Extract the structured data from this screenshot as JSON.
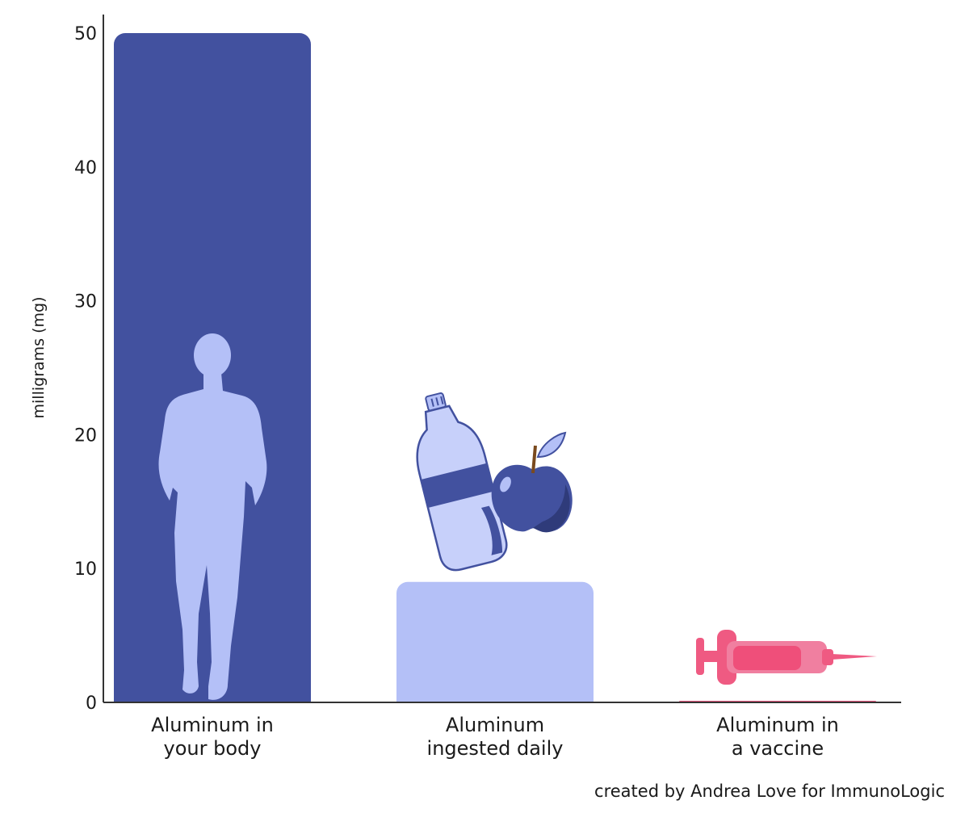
{
  "chart_data": {
    "type": "bar",
    "title": "",
    "xlabel": "",
    "ylabel": "milligrams (mg)",
    "ylim": [
      0,
      50
    ],
    "yticks": [
      0,
      10,
      20,
      30,
      40,
      50
    ],
    "categories": [
      "Aluminum in\nyour body",
      "Aluminum\ningested daily",
      "Aluminum in\na vaccine"
    ],
    "values": [
      50,
      9,
      0.1
    ],
    "bar_colors": [
      "#42519f",
      "#b4c0f7",
      "#ef5a82"
    ],
    "icons": [
      "person-silhouette-icon",
      "water-bottle-icon",
      "apple-icon",
      "syringe-icon"
    ],
    "grid": false
  },
  "credit": "created by Andrea Love for ImmunoLogic"
}
